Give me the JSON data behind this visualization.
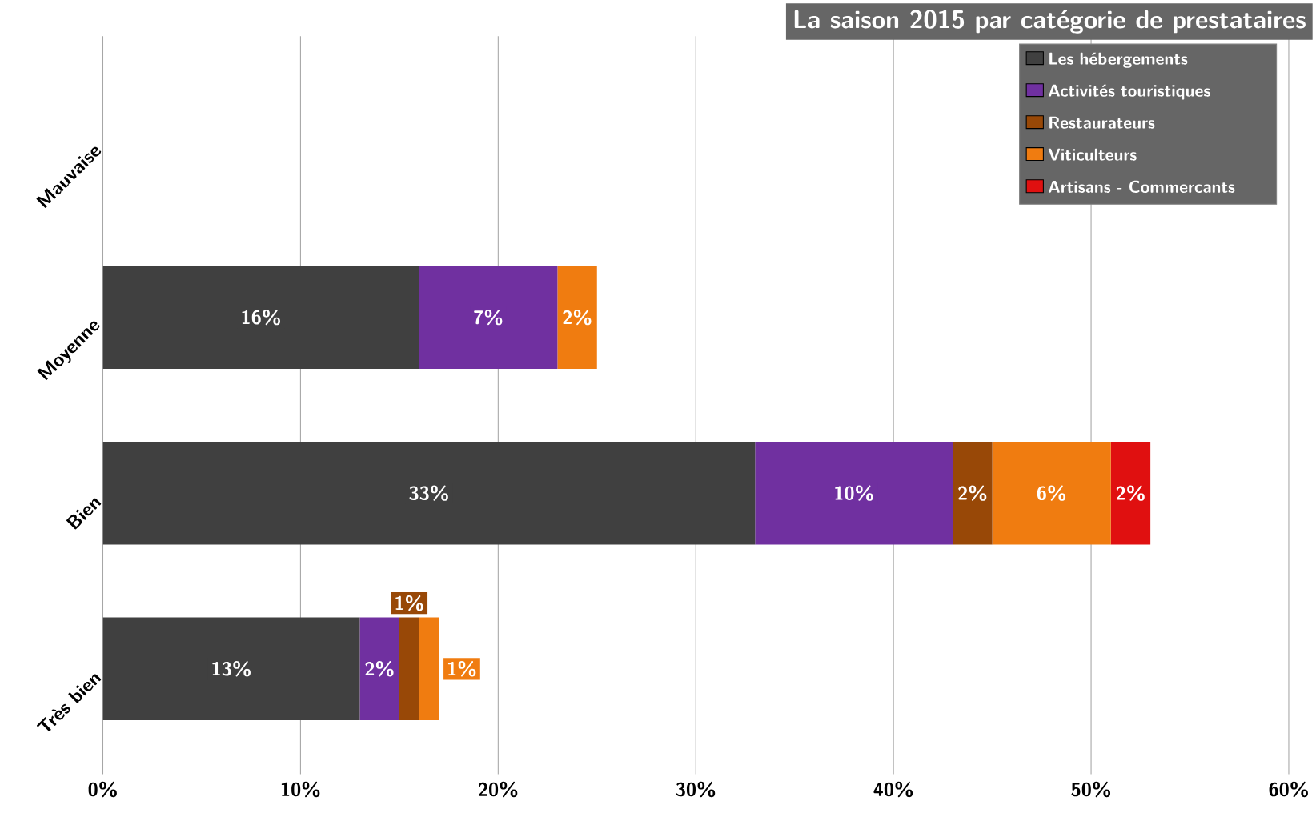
{
  "chart_data": {
    "type": "bar",
    "orientation": "horizontal",
    "stacked": true,
    "title": "La saison 2015 par catégorie de prestataires",
    "categories": [
      "Mauvaise",
      "Moyenne",
      "Bien",
      "Très bien"
    ],
    "series": [
      {
        "name": "Les hébergements",
        "color": "#404040",
        "values": [
          0,
          16,
          33,
          13
        ],
        "value_labels": [
          null,
          "16%",
          "33%",
          "13%"
        ]
      },
      {
        "name": "Activités touristiques",
        "color": "#7030a0",
        "values": [
          0,
          7,
          10,
          2
        ],
        "value_labels": [
          null,
          "7%",
          "10%",
          "2%"
        ]
      },
      {
        "name": "Restaurateurs",
        "color": "#984807",
        "values": [
          0,
          0,
          2,
          1
        ],
        "value_labels": [
          null,
          null,
          "2%",
          "1%"
        ]
      },
      {
        "name": "Viticulteurs",
        "color": "#f07c10",
        "values": [
          0,
          2,
          6,
          1
        ],
        "value_labels": [
          null,
          "2%",
          "6%",
          "1%"
        ]
      },
      {
        "name": "Artisans - Commercants",
        "color": "#e01010",
        "values": [
          0,
          0,
          2,
          0
        ],
        "value_labels": [
          null,
          null,
          "2%",
          null
        ]
      }
    ],
    "xlim": [
      0,
      60
    ],
    "xticks": [
      {
        "value": 0,
        "label": "0%"
      },
      {
        "value": 10,
        "label": "10%"
      },
      {
        "value": 20,
        "label": "20%"
      },
      {
        "value": 30,
        "label": "30%"
      },
      {
        "value": 40,
        "label": "40%"
      },
      {
        "value": 50,
        "label": "50%"
      },
      {
        "value": 60,
        "label": "60%"
      }
    ],
    "grid": "x",
    "legend": "top right"
  }
}
